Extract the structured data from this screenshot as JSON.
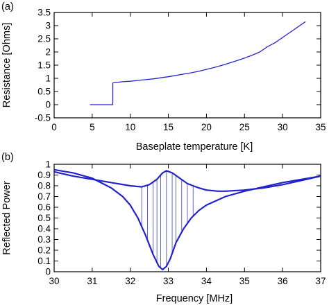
{
  "chart_data": [
    {
      "panel_label": "(a)",
      "type": "line",
      "xlabel": "Baseplate temperature [K]",
      "ylabel": "Resistance [Ohms]",
      "xlim": [
        0,
        35
      ],
      "ylim": [
        -0.5,
        3.5
      ],
      "xticks": [
        0,
        5,
        10,
        15,
        20,
        25,
        30,
        35
      ],
      "yticks": [
        -0.5,
        0,
        0.5,
        1,
        1.5,
        2,
        2.5,
        3,
        3.5
      ],
      "grid": false,
      "series": [
        {
          "color": "#2222cc",
          "x": [
            4.7,
            5.5,
            6.5,
            7.5,
            7.7,
            7.7,
            8.0,
            9.0,
            10.0,
            11.0,
            12.0,
            13.0,
            14.0,
            15.0,
            16.0,
            17.0,
            18.0,
            19.0,
            20.0,
            21.0,
            22.0,
            23.0,
            24.0,
            25.0,
            26.0,
            27.0,
            28.0,
            29.0,
            30.0,
            31.0,
            32.0,
            33.0
          ],
          "y": [
            0.0,
            0.0,
            0.0,
            0.0,
            0.0,
            0.82,
            0.84,
            0.87,
            0.89,
            0.92,
            0.95,
            0.98,
            1.02,
            1.06,
            1.11,
            1.16,
            1.21,
            1.27,
            1.34,
            1.41,
            1.49,
            1.58,
            1.67,
            1.77,
            1.88,
            2.0,
            2.2,
            2.35,
            2.55,
            2.75,
            2.95,
            3.15
          ]
        }
      ]
    },
    {
      "panel_label": "(b)",
      "type": "line",
      "xlabel": "Frequency [MHz]",
      "ylabel": "Reflected Power",
      "xlim": [
        30,
        37
      ],
      "ylim": [
        0,
        1
      ],
      "xticks": [
        30,
        31,
        32,
        33,
        34,
        35,
        36,
        37
      ],
      "yticks": [
        0,
        0.1,
        0.2,
        0.3,
        0.4,
        0.5,
        0.6,
        0.7,
        0.8,
        0.9,
        1
      ],
      "yticklabels": [
        "0",
        "0.1",
        "0.2",
        "0.3",
        "0.4",
        "0.5",
        "0.6",
        "0.7",
        "0.8",
        "0.9",
        "1"
      ],
      "grid": false,
      "series": [
        {
          "color": "#2222cc",
          "x": [
            30.0,
            30.5,
            31.0,
            31.5,
            32.0,
            32.3,
            32.5,
            32.7,
            32.85,
            32.95,
            33.1,
            33.3,
            33.5,
            33.8,
            34.0,
            34.3,
            34.5,
            35.0,
            35.5,
            36.0,
            36.5,
            37.0
          ],
          "y": [
            0.93,
            0.89,
            0.86,
            0.83,
            0.8,
            0.79,
            0.81,
            0.86,
            0.92,
            0.94,
            0.92,
            0.87,
            0.82,
            0.78,
            0.76,
            0.75,
            0.75,
            0.76,
            0.78,
            0.81,
            0.85,
            0.89
          ]
        },
        {
          "color": "#2222cc",
          "x": [
            30.0,
            30.5,
            31.0,
            31.5,
            31.8,
            32.0,
            32.2,
            32.4,
            32.6,
            32.75,
            32.85,
            32.95,
            33.05,
            33.2,
            33.4,
            33.6,
            33.8,
            34.0,
            34.5,
            35.0,
            35.5,
            36.0,
            36.5,
            37.0
          ],
          "y": [
            0.95,
            0.92,
            0.87,
            0.78,
            0.7,
            0.62,
            0.5,
            0.34,
            0.16,
            0.05,
            0.02,
            0.05,
            0.12,
            0.27,
            0.4,
            0.5,
            0.57,
            0.62,
            0.7,
            0.75,
            0.79,
            0.83,
            0.86,
            0.89
          ]
        }
      ],
      "connector_x": [
        32.3,
        32.45,
        32.6,
        32.7,
        32.8,
        32.95,
        33.1,
        33.2,
        33.35,
        33.5,
        33.65,
        35.4,
        35.8
      ]
    }
  ]
}
